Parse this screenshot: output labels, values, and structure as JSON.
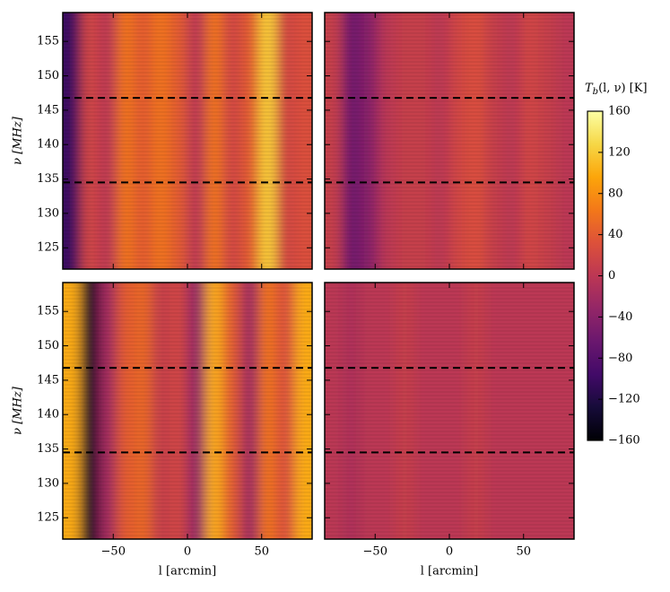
{
  "chart_data": [
    {
      "type": "heatmap",
      "x": [
        -78,
        -66,
        -54,
        -42,
        -30,
        -18,
        -6,
        6,
        18,
        30,
        42,
        54,
        66,
        78
      ],
      "values": [
        -100,
        20,
        0,
        60,
        40,
        60,
        40,
        0,
        60,
        20,
        40,
        120,
        20,
        30
      ],
      "xlim": [
        -84,
        84
      ],
      "ylim": [
        121.9,
        159.2
      ],
      "xticks": [
        {
          "value": -50,
          "label": "−50"
        },
        0,
        50
      ],
      "yticks": [
        125,
        130,
        135,
        140,
        145,
        150,
        155
      ],
      "xtick_labels": false,
      "ytick_labels": true,
      "ylabel": "ν [MHz]",
      "hlines": [
        146.8,
        134.5
      ]
    },
    {
      "type": "heatmap",
      "x": [
        -78,
        -66,
        -54,
        -42,
        -30,
        -18,
        -6,
        6,
        18,
        30,
        42,
        54,
        66,
        78
      ],
      "values": [
        10,
        -60,
        -40,
        0,
        10,
        10,
        0,
        20,
        30,
        10,
        0,
        20,
        10,
        0
      ],
      "xlim": [
        -84,
        84
      ],
      "ylim": [
        121.9,
        159.2
      ],
      "xticks": [
        {
          "value": -50,
          "label": "−50"
        },
        0,
        50
      ],
      "yticks": [
        125,
        130,
        135,
        140,
        145,
        150,
        155
      ],
      "xtick_labels": false,
      "ytick_labels": false,
      "hlines": [
        146.8,
        134.5
      ]
    },
    {
      "type": "heatmap",
      "x": [
        -78,
        -66,
        -54,
        -42,
        -30,
        -18,
        -6,
        6,
        18,
        30,
        42,
        54,
        66,
        78
      ],
      "values": [
        100,
        -140,
        -20,
        40,
        50,
        10,
        20,
        -30,
        100,
        40,
        -20,
        60,
        30,
        100
      ],
      "xlim": [
        -84,
        84
      ],
      "ylim": [
        121.9,
        159.2
      ],
      "xticks": [
        {
          "value": -50,
          "label": "−50"
        },
        0,
        50
      ],
      "yticks": [
        125,
        130,
        135,
        140,
        145,
        150,
        155
      ],
      "xtick_labels": true,
      "ytick_labels": true,
      "ylabel": "ν [MHz]",
      "xlabel": "l [arcmin]",
      "hlines": [
        146.8,
        134.5
      ]
    },
    {
      "type": "heatmap",
      "x": [
        -78,
        -66,
        -54,
        -42,
        -30,
        -18,
        -6,
        6,
        18,
        30,
        42,
        54,
        66,
        78
      ],
      "values": [
        0,
        -10,
        0,
        0,
        10,
        0,
        0,
        0,
        10,
        0,
        0,
        0,
        0,
        0
      ],
      "xlim": [
        -84,
        84
      ],
      "ylim": [
        121.9,
        159.2
      ],
      "xticks": [
        {
          "value": -50,
          "label": "−50"
        },
        0,
        50
      ],
      "yticks": [
        125,
        130,
        135,
        140,
        145,
        150,
        155
      ],
      "xtick_labels": true,
      "ytick_labels": false,
      "xlabel": "l [arcmin]",
      "hlines": [
        146.8,
        134.5
      ]
    },
    {
      "type": "colorbar",
      "label": {
        "symbol": "T",
        "subscript": "b",
        "rest": "(l, ν) [K]"
      },
      "ylim": [
        -160,
        160
      ],
      "yticks": [
        {
          "value": -160,
          "label": "−160"
        },
        {
          "value": -120,
          "label": "−120"
        },
        {
          "value": -80,
          "label": "−80"
        },
        {
          "value": -40,
          "label": "−40"
        },
        0,
        40,
        80,
        120,
        160
      ],
      "colormap": [
        "#000004",
        "#160b39",
        "#420a68",
        "#6a176e",
        "#932667",
        "#bc3754",
        "#dd513a",
        "#f37819",
        "#fca50a",
        "#f6d746",
        "#fcffa4"
      ]
    }
  ]
}
